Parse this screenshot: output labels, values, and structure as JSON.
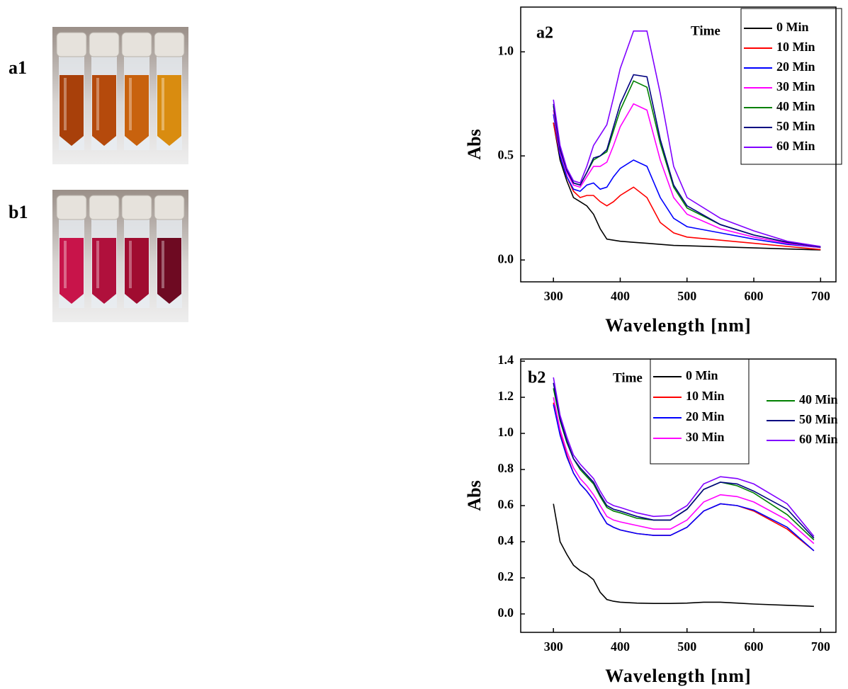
{
  "photos": [
    {
      "label": "a1"
    },
    {
      "label": "b1"
    }
  ],
  "chart_data": [
    {
      "type": "line",
      "panel_label": "a2",
      "legend_title": "Time",
      "xlabel": "Wavelength [nm]",
      "ylabel": "Abs",
      "x": [
        300,
        310,
        320,
        330,
        340,
        350,
        360,
        370,
        380,
        390,
        400,
        420,
        440,
        460,
        480,
        500,
        550,
        600,
        650,
        700
      ],
      "xlim": [
        251,
        723
      ],
      "ylim": [
        -0.105,
        1.215
      ],
      "xticks": [
        300,
        400,
        500,
        600,
        700
      ],
      "yticks": [
        {
          "value": 0,
          "label": "0.0"
        },
        0.5,
        {
          "value": 1,
          "label": "1.0"
        }
      ],
      "legend": "upper right",
      "series": [
        {
          "name": "0 Min",
          "color": "#000000",
          "values": [
            0.66,
            0.48,
            0.38,
            0.3,
            0.28,
            0.26,
            0.22,
            0.15,
            0.1,
            0.095,
            0.09,
            0.085,
            0.08,
            0.075,
            0.07,
            0.068,
            0.063,
            0.058,
            0.053,
            0.048
          ]
        },
        {
          "name": "10 Min",
          "color": "#ff0000",
          "values": [
            0.66,
            0.5,
            0.4,
            0.33,
            0.3,
            0.31,
            0.31,
            0.28,
            0.26,
            0.28,
            0.31,
            0.35,
            0.3,
            0.18,
            0.13,
            0.11,
            0.095,
            0.08,
            0.065,
            0.05
          ]
        },
        {
          "name": "20 Min",
          "color": "#0000ff",
          "values": [
            0.7,
            0.5,
            0.4,
            0.34,
            0.33,
            0.36,
            0.37,
            0.34,
            0.35,
            0.4,
            0.44,
            0.48,
            0.45,
            0.3,
            0.2,
            0.16,
            0.13,
            0.1,
            0.075,
            0.06
          ]
        },
        {
          "name": "30 Min",
          "color": "#ff00ff",
          "values": [
            0.72,
            0.52,
            0.42,
            0.36,
            0.35,
            0.4,
            0.45,
            0.45,
            0.47,
            0.55,
            0.64,
            0.75,
            0.72,
            0.48,
            0.3,
            0.22,
            0.15,
            0.11,
            0.08,
            0.06
          ]
        },
        {
          "name": "40 Min",
          "color": "#008000",
          "values": [
            0.74,
            0.53,
            0.43,
            0.37,
            0.36,
            0.42,
            0.48,
            0.5,
            0.52,
            0.62,
            0.72,
            0.86,
            0.83,
            0.56,
            0.35,
            0.25,
            0.17,
            0.12,
            0.085,
            0.062
          ]
        },
        {
          "name": "50 Min",
          "color": "#000080",
          "values": [
            0.75,
            0.53,
            0.43,
            0.37,
            0.36,
            0.42,
            0.49,
            0.5,
            0.53,
            0.64,
            0.75,
            0.89,
            0.88,
            0.58,
            0.36,
            0.26,
            0.17,
            0.12,
            0.085,
            0.062
          ]
        },
        {
          "name": "60 Min",
          "color": "#8000ff",
          "values": [
            0.77,
            0.55,
            0.44,
            0.38,
            0.37,
            0.45,
            0.55,
            0.6,
            0.65,
            0.78,
            0.92,
            1.1,
            1.1,
            0.8,
            0.45,
            0.3,
            0.2,
            0.14,
            0.09,
            0.065
          ]
        }
      ]
    },
    {
      "type": "line",
      "panel_label": "b2",
      "legend_title": "Time",
      "xlabel": "Wavelength [nm]",
      "ylabel": "Abs",
      "x": [
        300,
        310,
        320,
        330,
        340,
        350,
        360,
        370,
        380,
        390,
        400,
        425,
        450,
        475,
        500,
        525,
        550,
        575,
        600,
        650,
        690
      ],
      "xlim": [
        251,
        723
      ],
      "ylim": [
        -0.102,
        1.412
      ],
      "xticks": [
        300,
        400,
        500,
        600,
        700
      ],
      "yticks": [
        {
          "value": 0,
          "label": "0.0"
        },
        0.2,
        0.4,
        0.6,
        0.8,
        {
          "value": 1,
          "label": "1.0"
        },
        1.2,
        1.4
      ],
      "legend": "upper center",
      "series": [
        {
          "name": "0 Min",
          "color": "#000000",
          "values": [
            0.61,
            0.4,
            0.33,
            0.27,
            0.24,
            0.22,
            0.19,
            0.12,
            0.08,
            0.07,
            0.065,
            0.06,
            0.058,
            0.058,
            0.06,
            0.065,
            0.065,
            0.06,
            0.055,
            0.048,
            0.042
          ]
        },
        {
          "name": "10 Min",
          "color": "#ff0000",
          "values": [
            1.17,
            1.0,
            0.88,
            0.78,
            0.72,
            0.68,
            0.63,
            0.56,
            0.5,
            0.48,
            0.465,
            0.445,
            0.435,
            0.435,
            0.48,
            0.57,
            0.61,
            0.6,
            0.57,
            0.47,
            0.35
          ]
        },
        {
          "name": "20 Min",
          "color": "#0000ff",
          "values": [
            1.16,
            0.99,
            0.87,
            0.78,
            0.72,
            0.68,
            0.63,
            0.56,
            0.5,
            0.48,
            0.465,
            0.445,
            0.435,
            0.435,
            0.48,
            0.57,
            0.61,
            0.6,
            0.575,
            0.48,
            0.35
          ]
        },
        {
          "name": "30 Min",
          "color": "#ff00ff",
          "values": [
            1.2,
            1.02,
            0.9,
            0.81,
            0.75,
            0.71,
            0.66,
            0.6,
            0.54,
            0.52,
            0.51,
            0.49,
            0.47,
            0.47,
            0.52,
            0.62,
            0.66,
            0.65,
            0.62,
            0.52,
            0.39
          ]
        },
        {
          "name": "40 Min",
          "color": "#008000",
          "values": [
            1.25,
            1.07,
            0.95,
            0.86,
            0.8,
            0.76,
            0.72,
            0.65,
            0.59,
            0.57,
            0.56,
            0.53,
            0.52,
            0.52,
            0.58,
            0.69,
            0.73,
            0.71,
            0.67,
            0.55,
            0.41
          ]
        },
        {
          "name": "50 Min",
          "color": "#000080",
          "values": [
            1.28,
            1.08,
            0.96,
            0.86,
            0.81,
            0.77,
            0.73,
            0.66,
            0.6,
            0.58,
            0.57,
            0.54,
            0.52,
            0.52,
            0.58,
            0.69,
            0.73,
            0.72,
            0.68,
            0.58,
            0.42
          ]
        },
        {
          "name": "60 Min",
          "color": "#8000ff",
          "values": [
            1.31,
            1.1,
            0.98,
            0.88,
            0.83,
            0.79,
            0.75,
            0.68,
            0.62,
            0.6,
            0.59,
            0.56,
            0.54,
            0.545,
            0.6,
            0.72,
            0.76,
            0.75,
            0.72,
            0.61,
            0.43
          ]
        }
      ]
    }
  ]
}
